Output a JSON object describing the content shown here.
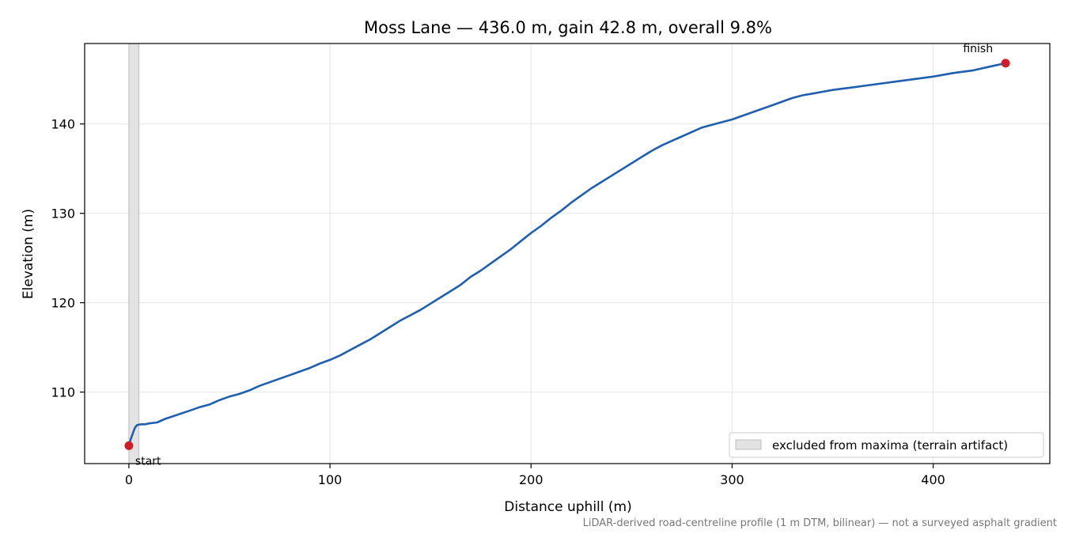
{
  "chart_data": {
    "type": "line",
    "title": "Moss Lane — 436.0 m, gain 42.8 m, overall 9.8%",
    "xlabel": "Distance uphill (m)",
    "ylabel": "Elevation (m)",
    "xlim": [
      -22,
      458
    ],
    "ylim": [
      102,
      149
    ],
    "x_ticks": [
      0,
      100,
      200,
      300,
      400
    ],
    "y_ticks": [
      110,
      120,
      130,
      140
    ],
    "grid": true,
    "series": [
      {
        "color": "#1f5fae",
        "points": [
          [
            0,
            104.0
          ],
          [
            1,
            104.8
          ],
          [
            2,
            105.4
          ],
          [
            3,
            106.0
          ],
          [
            4,
            106.3
          ],
          [
            6,
            106.4
          ],
          [
            8,
            106.4
          ],
          [
            10,
            106.5
          ],
          [
            14,
            106.6
          ],
          [
            18,
            107.0
          ],
          [
            22,
            107.3
          ],
          [
            26,
            107.6
          ],
          [
            30,
            107.9
          ],
          [
            35,
            108.3
          ],
          [
            40,
            108.6
          ],
          [
            45,
            109.1
          ],
          [
            50,
            109.5
          ],
          [
            55,
            109.8
          ],
          [
            60,
            110.2
          ],
          [
            65,
            110.7
          ],
          [
            70,
            111.1
          ],
          [
            75,
            111.5
          ],
          [
            80,
            111.9
          ],
          [
            85,
            112.3
          ],
          [
            90,
            112.7
          ],
          [
            95,
            113.2
          ],
          [
            100,
            113.6
          ],
          [
            105,
            114.1
          ],
          [
            110,
            114.7
          ],
          [
            115,
            115.3
          ],
          [
            120,
            115.9
          ],
          [
            125,
            116.6
          ],
          [
            130,
            117.3
          ],
          [
            135,
            118.0
          ],
          [
            140,
            118.6
          ],
          [
            145,
            119.2
          ],
          [
            150,
            119.9
          ],
          [
            155,
            120.6
          ],
          [
            160,
            121.3
          ],
          [
            165,
            122.0
          ],
          [
            170,
            122.9
          ],
          [
            175,
            123.6
          ],
          [
            180,
            124.4
          ],
          [
            185,
            125.2
          ],
          [
            190,
            126.0
          ],
          [
            195,
            126.9
          ],
          [
            200,
            127.8
          ],
          [
            205,
            128.6
          ],
          [
            210,
            129.5
          ],
          [
            215,
            130.3
          ],
          [
            220,
            131.2
          ],
          [
            225,
            132.0
          ],
          [
            230,
            132.8
          ],
          [
            235,
            133.5
          ],
          [
            240,
            134.2
          ],
          [
            245,
            134.9
          ],
          [
            250,
            135.6
          ],
          [
            255,
            136.3
          ],
          [
            260,
            137.0
          ],
          [
            265,
            137.6
          ],
          [
            270,
            138.1
          ],
          [
            275,
            138.6
          ],
          [
            280,
            139.1
          ],
          [
            285,
            139.6
          ],
          [
            290,
            139.9
          ],
          [
            295,
            140.2
          ],
          [
            300,
            140.5
          ],
          [
            305,
            140.9
          ],
          [
            310,
            141.3
          ],
          [
            315,
            141.7
          ],
          [
            320,
            142.1
          ],
          [
            325,
            142.5
          ],
          [
            330,
            142.9
          ],
          [
            335,
            143.2
          ],
          [
            340,
            143.4
          ],
          [
            345,
            143.6
          ],
          [
            350,
            143.8
          ],
          [
            360,
            144.1
          ],
          [
            370,
            144.4
          ],
          [
            380,
            144.7
          ],
          [
            390,
            145.0
          ],
          [
            400,
            145.3
          ],
          [
            410,
            145.7
          ],
          [
            420,
            146.0
          ],
          [
            430,
            146.5
          ],
          [
            436,
            146.8
          ]
        ]
      }
    ],
    "shaded_region": {
      "x0": 0,
      "x1": 5,
      "color": "#c8c8c8"
    },
    "legend": {
      "label": "excluded from maxima (terrain artifact)",
      "placement": "lower-right"
    },
    "markers": [
      {
        "label": "start",
        "x": 0,
        "y": 104.0,
        "color": "#cc1f2a"
      },
      {
        "label": "finish",
        "x": 436,
        "y": 146.8,
        "color": "#cc1f2a"
      }
    ],
    "footnote": "LiDAR-derived road-centreline profile (1 m DTM, bilinear) — not a surveyed asphalt gradient"
  }
}
